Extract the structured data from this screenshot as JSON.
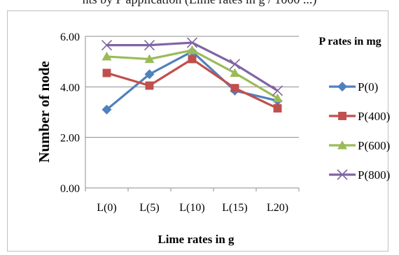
{
  "caption_fragment": "nts by P application (Lime rates in g / 1000 ...)",
  "chart_data": {
    "type": "line",
    "title": "",
    "xlabel": "Lime rates in g",
    "ylabel": "Number of node",
    "legend_title": "P rates in mg",
    "legend_position": "right",
    "grid": true,
    "categories": [
      "L(0)",
      "L(5)",
      "L(10)",
      "L(15)",
      "L20)"
    ],
    "ylim": [
      0,
      6
    ],
    "yticks": [
      "0.00",
      "2.00",
      "4.00",
      "6.00"
    ],
    "ytick_values": [
      0,
      2,
      4,
      6
    ],
    "series": [
      {
        "name": "P(0)",
        "color": "#4F81BD",
        "marker": "diamond",
        "values": [
          3.1,
          4.5,
          5.4,
          3.85,
          3.45
        ]
      },
      {
        "name": "P(400)",
        "color": "#C0504D",
        "marker": "square",
        "values": [
          4.55,
          4.05,
          5.1,
          3.95,
          3.15
        ]
      },
      {
        "name": "P(600)",
        "color": "#9BBB59",
        "marker": "triangle",
        "values": [
          5.2,
          5.1,
          5.45,
          4.55,
          3.55
        ]
      },
      {
        "name": "P(800)",
        "color": "#8064A2",
        "marker": "x",
        "values": [
          5.65,
          5.65,
          5.75,
          4.9,
          3.85
        ]
      }
    ]
  }
}
